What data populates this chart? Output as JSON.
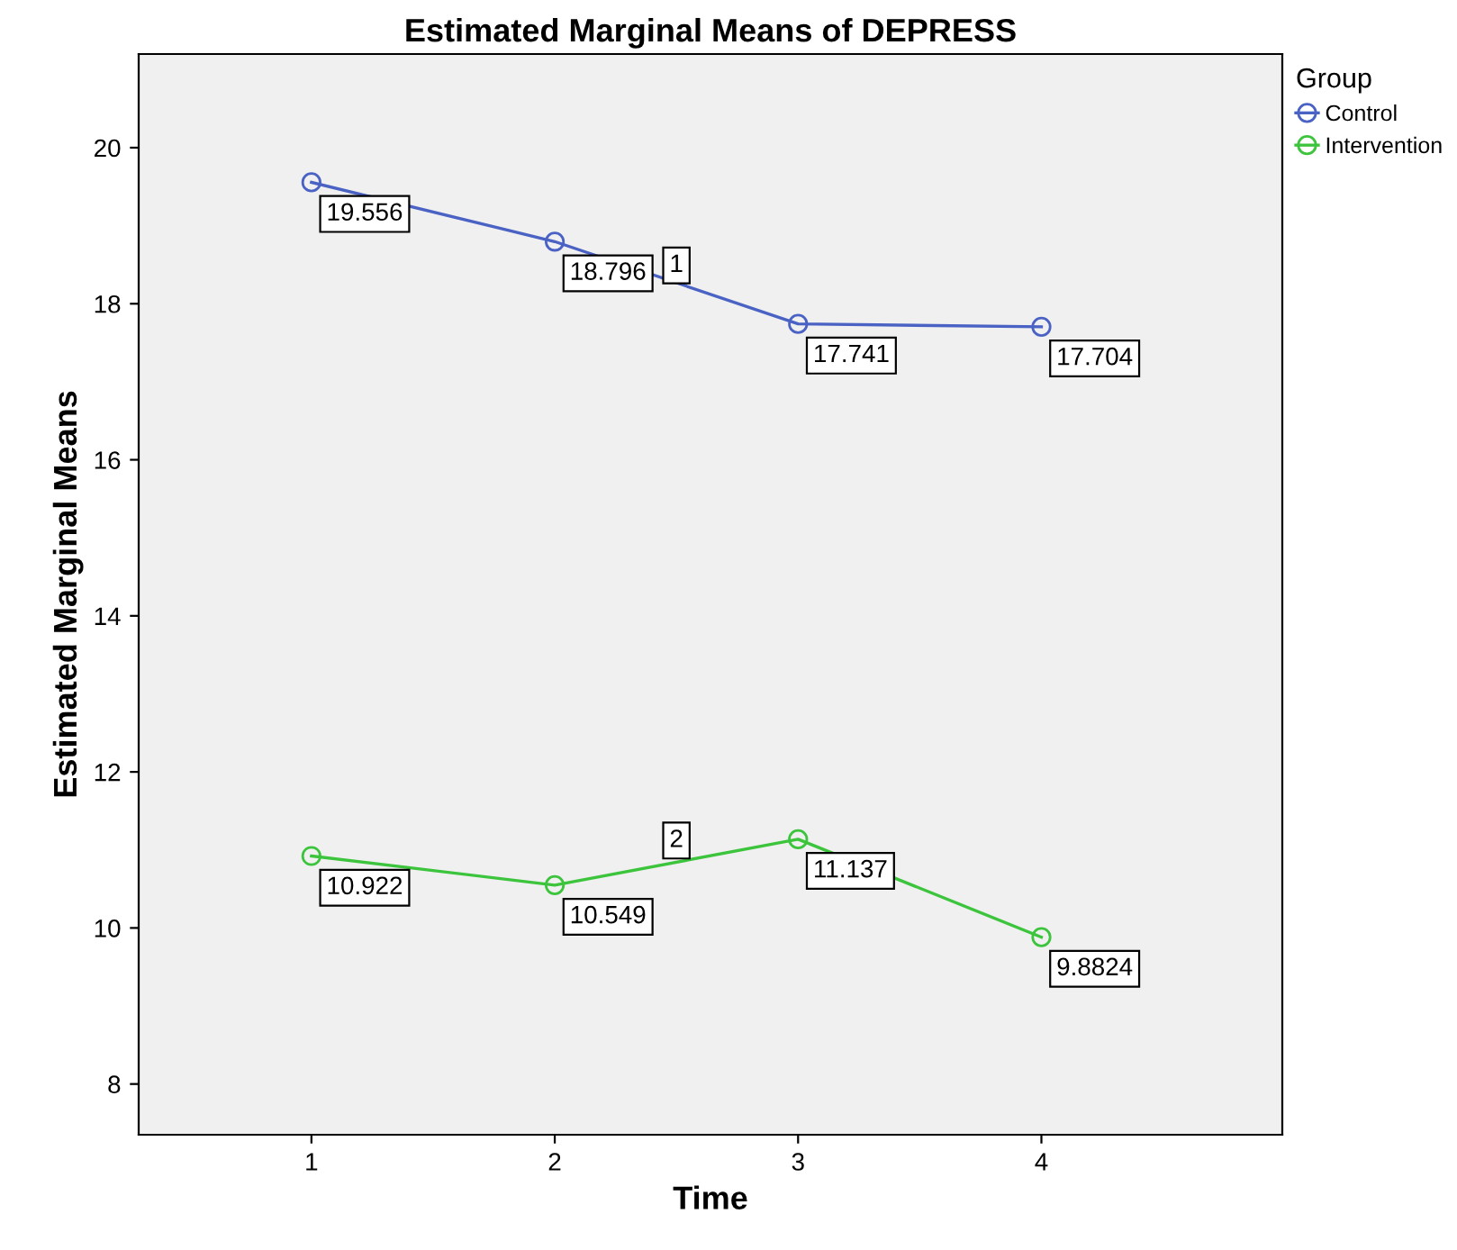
{
  "chart_data": {
    "type": "line",
    "title": "Estimated Marginal Means of DEPRESS",
    "xlabel": "Time",
    "ylabel": "Estimated Marginal Means",
    "legend_title": "Group",
    "x": [
      1,
      2,
      3,
      4
    ],
    "xlim": [
      0.29,
      4.99
    ],
    "xticks": [
      1,
      2,
      3,
      4
    ],
    "ylim": [
      7.35,
      21.2
    ],
    "yticks": [
      8,
      10,
      12,
      14,
      16,
      18,
      20
    ],
    "series": [
      {
        "name": "Control",
        "color": "#4a62c4",
        "values": [
          19.556,
          18.796,
          17.741,
          17.704
        ]
      },
      {
        "name": "Intervention",
        "color": "#3cc43c",
        "values": [
          10.922,
          10.549,
          11.137,
          9.8824
        ]
      }
    ],
    "annotations": [
      {
        "text": "1",
        "x": 2.5,
        "y": 18.49
      },
      {
        "text": "2",
        "x": 2.5,
        "y": 11.12
      }
    ],
    "data_labels": true,
    "marker": "circle",
    "line_style": "solid",
    "grid": false,
    "legend": "top right"
  }
}
